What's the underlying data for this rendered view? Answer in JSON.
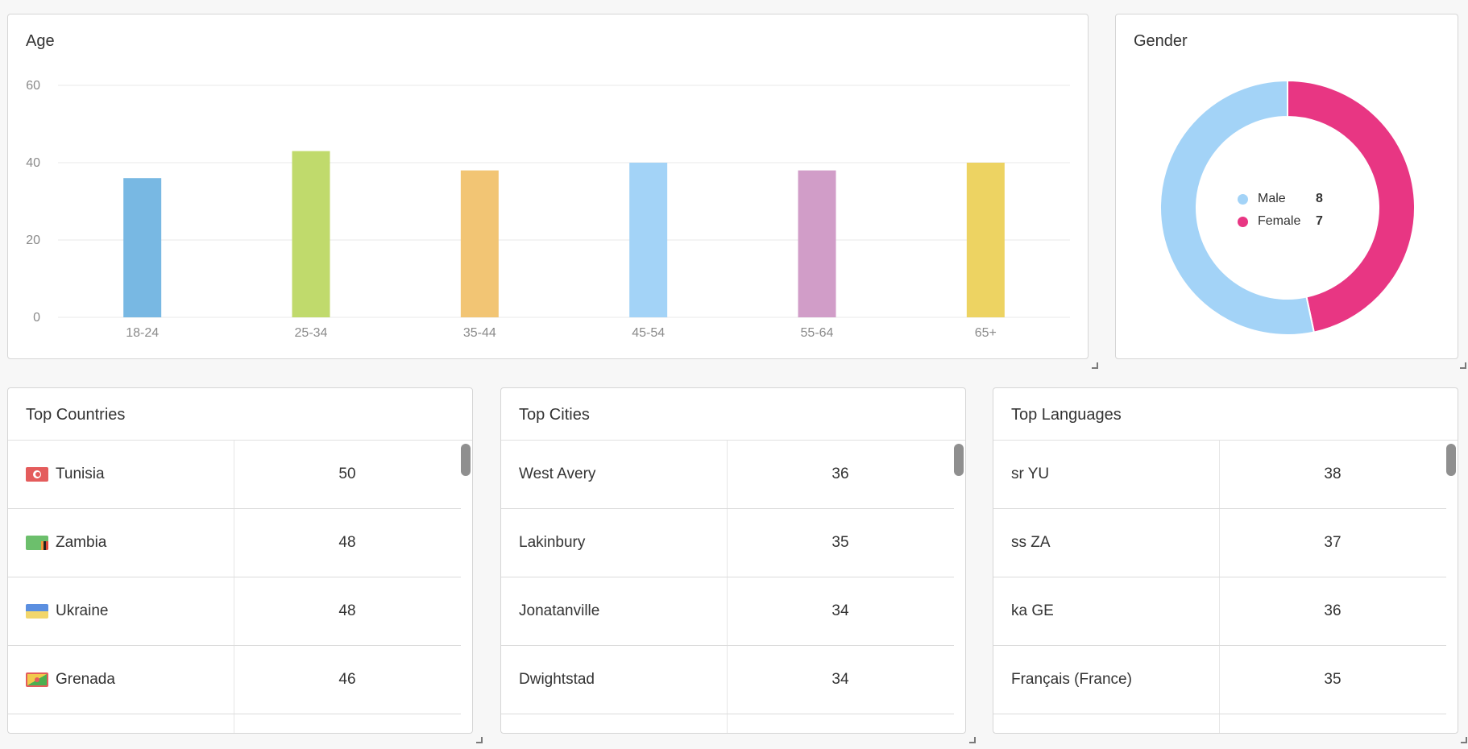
{
  "age_card": {
    "title": "Age"
  },
  "gender_card": {
    "title": "Gender",
    "legend": [
      {
        "label": "Male",
        "value": "8",
        "color": "#a3d3f7"
      },
      {
        "label": "Female",
        "value": "7",
        "color": "#e83683"
      }
    ]
  },
  "chart_data": [
    {
      "type": "bar",
      "title": "Age",
      "categories": [
        "18-24",
        "25-34",
        "35-44",
        "45-54",
        "55-64",
        "65+"
      ],
      "values": [
        36,
        43,
        38,
        40,
        38,
        40
      ],
      "colors": [
        "#78b8e3",
        "#c0da6c",
        "#f2c574",
        "#a3d3f7",
        "#d19dc8",
        "#edd362"
      ],
      "ylim": [
        0,
        60
      ],
      "yticks": [
        0,
        20,
        40,
        60
      ],
      "grid": true
    },
    {
      "type": "pie",
      "title": "Gender",
      "categories": [
        "Male",
        "Female"
      ],
      "values": [
        8,
        7
      ],
      "colors": [
        "#a3d3f7",
        "#e83683"
      ]
    }
  ],
  "countries": {
    "title": "Top Countries",
    "rows": [
      {
        "name": "Tunisia",
        "value": "50",
        "flag": "tunisia-flag"
      },
      {
        "name": "Zambia",
        "value": "48",
        "flag": "zambia-flag"
      },
      {
        "name": "Ukraine",
        "value": "48",
        "flag": "ukraine-flag"
      },
      {
        "name": "Grenada",
        "value": "46",
        "flag": "grenada-flag"
      }
    ]
  },
  "cities": {
    "title": "Top Cities",
    "rows": [
      {
        "name": "West Avery",
        "value": "36"
      },
      {
        "name": "Lakinbury",
        "value": "35"
      },
      {
        "name": "Jonatanville",
        "value": "34"
      },
      {
        "name": "Dwightstad",
        "value": "34"
      }
    ]
  },
  "languages": {
    "title": "Top Languages",
    "rows": [
      {
        "name": "sr YU",
        "value": "38"
      },
      {
        "name": "ss ZA",
        "value": "37"
      },
      {
        "name": "ka GE",
        "value": "36"
      },
      {
        "name": "Français (France)",
        "value": "35"
      }
    ]
  }
}
